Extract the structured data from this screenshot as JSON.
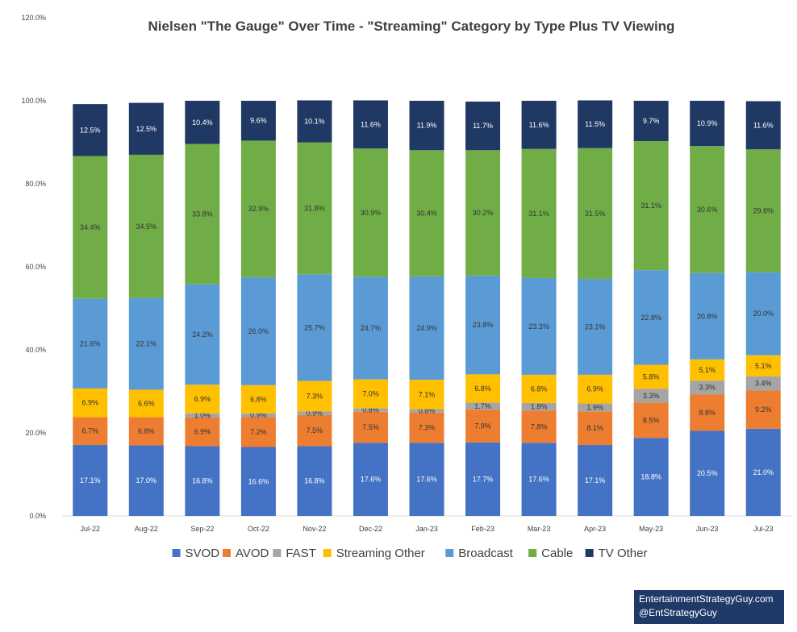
{
  "chart_data": {
    "type": "bar",
    "stacked": true,
    "title": "Nielsen \"The Gauge\" Over Time - \"Streaming\" Category by Type Plus TV Viewing",
    "xlabel": "",
    "ylabel": "",
    "ylim": [
      0,
      120
    ],
    "yticks": [
      "0.0%",
      "20.0%",
      "40.0%",
      "60.0%",
      "80.0%",
      "100.0%",
      "120.0%"
    ],
    "legend_position": "bottom",
    "categories": [
      "Jul-22",
      "Aug-22",
      "Sep-22",
      "Oct-22",
      "Nov-22",
      "Dec-22",
      "Jan-23",
      "Feb-23",
      "Mar-23",
      "Apr-23",
      "May-23",
      "Jun-23",
      "Jul-23"
    ],
    "series": [
      {
        "name": "SVOD",
        "color": "#4472c4",
        "label_color": "#ffffff",
        "values": [
          17.1,
          17.0,
          16.8,
          16.6,
          16.8,
          17.6,
          17.6,
          17.7,
          17.6,
          17.1,
          18.8,
          20.5,
          21.0
        ],
        "labels": [
          "17.1%",
          "17.0%",
          "16.8%",
          "16.6%",
          "16.8%",
          "17.6%",
          "17.6%",
          "17.7%",
          "17.6%",
          "17.1%",
          "18.8%",
          "20.5%",
          "21.0%"
        ]
      },
      {
        "name": "AVOD",
        "color": "#ed7d31",
        "label_color": "#333333",
        "values": [
          6.7,
          6.8,
          6.9,
          7.2,
          7.5,
          7.5,
          7.3,
          7.9,
          7.8,
          8.1,
          8.5,
          8.8,
          9.2
        ],
        "labels": [
          "6.7%",
          "6.8%",
          "6.9%",
          "7.2%",
          "7.5%",
          "7.5%",
          "7.3%",
          "7.9%",
          "7.8%",
          "8.1%",
          "8.5%",
          "8.8%",
          "9.2%"
        ]
      },
      {
        "name": "FAST",
        "color": "#a5a5a5",
        "label_color": "#333333",
        "values": [
          0,
          0,
          1.0,
          0.9,
          0.9,
          0.8,
          0.8,
          1.7,
          1.8,
          1.9,
          3.3,
          3.3,
          3.4
        ],
        "labels": [
          "",
          "",
          "1.0%",
          "0.9%",
          "0.9%",
          "0.8%",
          "0.8%",
          "1.7%",
          "1.8%",
          "1.9%",
          "3.3%",
          "3.3%",
          "3.4%"
        ]
      },
      {
        "name": "Streaming Other",
        "color": "#ffc000",
        "label_color": "#333333",
        "values": [
          6.9,
          6.6,
          6.9,
          6.8,
          7.3,
          7.0,
          7.1,
          6.8,
          6.8,
          6.9,
          5.8,
          5.1,
          5.1
        ],
        "labels": [
          "6.9%",
          "6.6%",
          "6.9%",
          "6.8%",
          "7.3%",
          "7.0%",
          "7.1%",
          "6.8%",
          "6.8%",
          "6.9%",
          "5.8%",
          "5.1%",
          "5.1%"
        ]
      },
      {
        "name": "Broadcast",
        "color": "#5b9bd5",
        "label_color": "#333333",
        "values": [
          21.6,
          22.1,
          24.2,
          26.0,
          25.7,
          24.7,
          24.9,
          23.8,
          23.3,
          23.1,
          22.8,
          20.8,
          20.0
        ],
        "labels": [
          "21.6%",
          "22.1%",
          "24.2%",
          "26.0%",
          "25.7%",
          "24.7%",
          "24.9%",
          "23.8%",
          "23.3%",
          "23.1%",
          "22.8%",
          "20.8%",
          "20.0%"
        ]
      },
      {
        "name": "Cable",
        "color": "#70ad47",
        "label_color": "#333333",
        "values": [
          34.4,
          34.5,
          33.8,
          32.9,
          31.8,
          30.9,
          30.4,
          30.2,
          31.1,
          31.5,
          31.1,
          30.6,
          29.6
        ],
        "labels": [
          "34.4%",
          "34.5%",
          "33.8%",
          "32.9%",
          "31.8%",
          "30.9%",
          "30.4%",
          "30.2%",
          "31.1%",
          "31.5%",
          "31.1%",
          "30.6%",
          "29.6%"
        ]
      },
      {
        "name": "TV Other",
        "color": "#203864",
        "label_color": "#ffffff",
        "values": [
          12.5,
          12.5,
          10.4,
          9.6,
          10.1,
          11.6,
          11.9,
          11.7,
          11.6,
          11.5,
          9.7,
          10.9,
          11.6
        ],
        "labels": [
          "12.5%",
          "12.5%",
          "10.4%",
          "9.6%",
          "10.1%",
          "11.6%",
          "11.9%",
          "11.7%",
          "11.6%",
          "11.5%",
          "9.7%",
          "10.9%",
          "11.6%"
        ]
      }
    ]
  },
  "watermark": {
    "line1": "EntertainmentStrategyGuy.com",
    "line2": "@EntStrategyGuy"
  }
}
